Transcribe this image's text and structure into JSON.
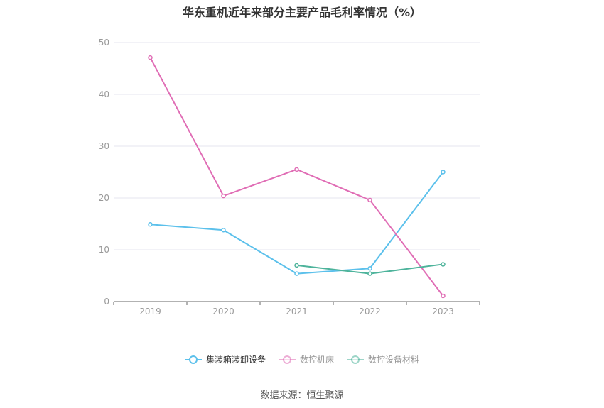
{
  "chart_data": {
    "type": "line",
    "title": "华东重机近年来部分主要产品毛利率情况（%）",
    "categories": [
      "2019",
      "2020",
      "2021",
      "2022",
      "2023"
    ],
    "ylim": [
      0,
      50
    ],
    "yticks": [
      0,
      10,
      20,
      30,
      40,
      50
    ],
    "grid": true,
    "legend_position": "bottom",
    "series": [
      {
        "name": "集装箱装卸设备",
        "color": "#5bc0eb",
        "values": [
          14.9,
          13.8,
          5.4,
          6.4,
          25.0
        ]
      },
      {
        "name": "数控机床",
        "color": "#e06db5",
        "values": [
          47.1,
          20.4,
          25.5,
          19.6,
          1.1
        ]
      },
      {
        "name": "数控设备材料",
        "color": "#4db39b",
        "values": [
          null,
          null,
          7.0,
          5.4,
          7.2
        ]
      }
    ]
  },
  "source": "数据来源：恒生聚源"
}
